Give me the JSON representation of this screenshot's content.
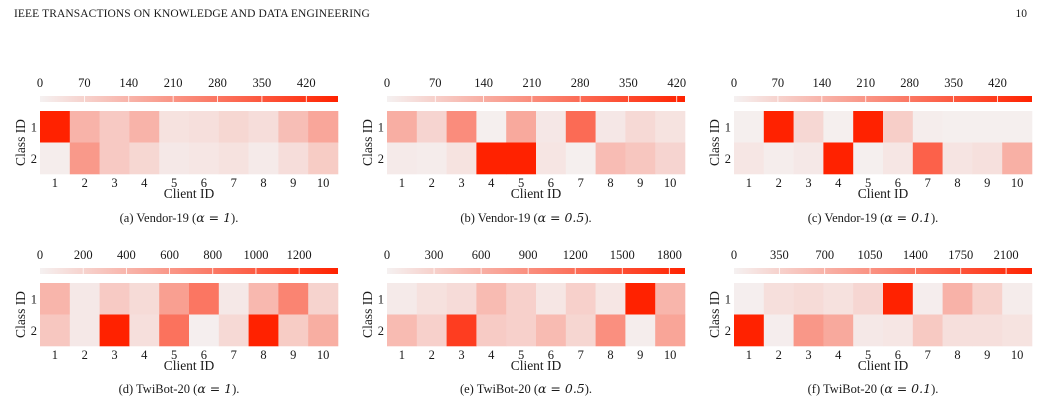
{
  "header": {
    "journal": "IEEE TRANSACTIONS ON KNOWLEDGE AND DATA ENGINEERING",
    "page_number": "10"
  },
  "colors": {
    "low": "#f5f1f1",
    "high": "#ff2200"
  },
  "chart_data": [
    {
      "type": "heatmap",
      "caption_prefix": "(a)  Vendor-19 (",
      "caption_alpha": "α = 1",
      "caption_suffix": ").",
      "colorbar_ticks": [
        "0",
        "70",
        "140",
        "210",
        "280",
        "350",
        "420"
      ],
      "vmax": 470,
      "x": [
        "1",
        "2",
        "3",
        "4",
        "5",
        "6",
        "7",
        "8",
        "9",
        "10"
      ],
      "y": [
        "1",
        "2"
      ],
      "xlabel": "Client ID",
      "ylabel": "Class ID",
      "values": [
        [
          470,
          140,
          90,
          140,
          35,
          40,
          60,
          45,
          115,
          170
        ],
        [
          10,
          200,
          90,
          60,
          20,
          25,
          35,
          15,
          45,
          85
        ]
      ]
    },
    {
      "type": "heatmap",
      "caption_prefix": "(b)  Vendor-19 (",
      "caption_alpha": "α = 0.5",
      "caption_suffix": ").",
      "colorbar_ticks": [
        "0",
        "70",
        "140",
        "210",
        "280",
        "350",
        "420"
      ],
      "vmax": 432,
      "x": [
        "1",
        "2",
        "3",
        "4",
        "5",
        "6",
        "7",
        "8",
        "9",
        "10"
      ],
      "y": [
        "1",
        "2"
      ],
      "xlabel": "Client ID",
      "ylabel": "Class ID",
      "values": [
        [
          140,
          60,
          210,
          5,
          150,
          20,
          280,
          20,
          50,
          30
        ],
        [
          15,
          10,
          30,
          432,
          432,
          25,
          5,
          110,
          90,
          60
        ]
      ]
    },
    {
      "type": "heatmap",
      "caption_prefix": "(c)  Vendor-19 (",
      "caption_alpha": "α = 0.1",
      "caption_suffix": ").",
      "colorbar_ticks": [
        "0",
        "70",
        "140",
        "210",
        "280",
        "350",
        "420"
      ],
      "vmax": 475,
      "x": [
        "1",
        "2",
        "3",
        "4",
        "5",
        "6",
        "7",
        "8",
        "9",
        "10"
      ],
      "y": [
        "1",
        "2"
      ],
      "xlabel": "Client ID",
      "ylabel": "Class ID",
      "values": [
        [
          5,
          475,
          60,
          5,
          475,
          80,
          10,
          5,
          5,
          5
        ],
        [
          25,
          10,
          20,
          475,
          5,
          25,
          330,
          30,
          40,
          150
        ]
      ]
    },
    {
      "type": "heatmap",
      "caption_prefix": "(d)  TwiBot-20 (",
      "caption_alpha": "α = 1",
      "caption_suffix": ").",
      "colorbar_ticks": [
        "0",
        "200",
        "400",
        "600",
        "800",
        "1000",
        "1200"
      ],
      "vmax": 1380,
      "x": [
        "1",
        "2",
        "3",
        "4",
        "5",
        "6",
        "7",
        "8",
        "9",
        "10"
      ],
      "y": [
        "1",
        "2"
      ],
      "xlabel": "Client ID",
      "ylabel": "Class ID",
      "values": [
        [
          400,
          60,
          260,
          150,
          550,
          820,
          60,
          380,
          730,
          200
        ],
        [
          280,
          60,
          1380,
          120,
          850,
          20,
          160,
          1380,
          250,
          450
        ]
      ]
    },
    {
      "type": "heatmap",
      "caption_prefix": "(e)  TwiBot-20 (",
      "caption_alpha": "α = 0.5",
      "caption_suffix": ").",
      "colorbar_ticks": [
        "0",
        "300",
        "600",
        "900",
        "1200",
        "1500",
        "1800"
      ],
      "vmax": 1900,
      "x": [
        "1",
        "2",
        "3",
        "4",
        "5",
        "6",
        "7",
        "8",
        "9",
        "10"
      ],
      "y": [
        "1",
        "2"
      ],
      "xlabel": "Client ID",
      "ylabel": "Class ID",
      "values": [
        [
          60,
          150,
          200,
          500,
          300,
          100,
          300,
          100,
          1900,
          550
        ],
        [
          500,
          300,
          1650,
          350,
          300,
          500,
          250,
          900,
          40,
          700
        ]
      ]
    },
    {
      "type": "heatmap",
      "caption_prefix": "(f)  TwiBot-20 (",
      "caption_alpha": "α = 0.1",
      "caption_suffix": ").",
      "colorbar_ticks": [
        "0",
        "350",
        "700",
        "1050",
        "1400",
        "1750",
        "2100"
      ],
      "vmax": 2300,
      "x": [
        "1",
        "2",
        "3",
        "4",
        "5",
        "6",
        "7",
        "8",
        "9",
        "10"
      ],
      "y": [
        "1",
        "2"
      ],
      "xlabel": "Client ID",
      "ylabel": "Class ID",
      "values": [
        [
          30,
          200,
          250,
          180,
          300,
          2300,
          40,
          700,
          350,
          60
        ],
        [
          2300,
          40,
          1000,
          800,
          100,
          120,
          450,
          200,
          200,
          160
        ]
      ]
    }
  ]
}
